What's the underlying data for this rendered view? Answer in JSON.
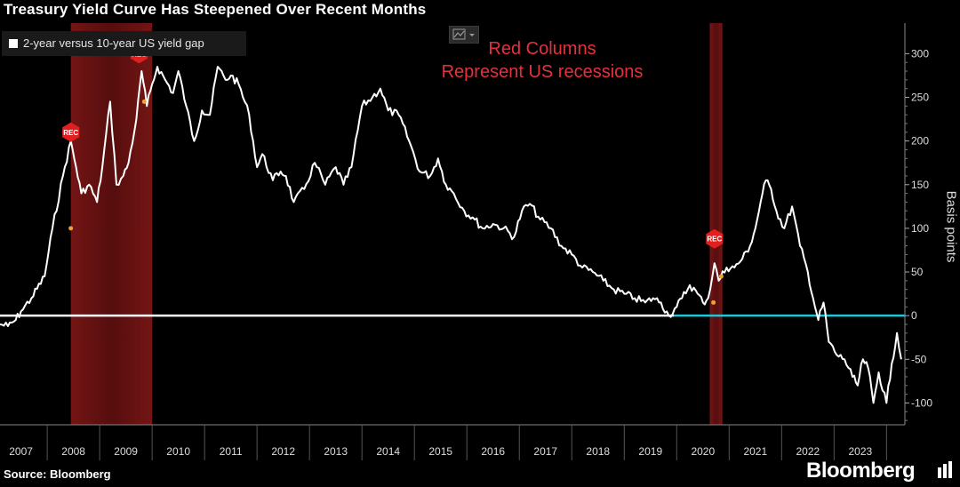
{
  "title": "Treasury Yield Curve Has Steepened Over Recent Months",
  "legend": {
    "label": "2-year versus 10-year US yield gap"
  },
  "annotation": {
    "line1": "Red Columns",
    "line2": "Represent US recessions"
  },
  "footer": {
    "source": "Source: Bloomberg",
    "brand": "Bloomberg"
  },
  "icons": {
    "chart_toggle": "line-chart-dropdown-icon",
    "brand_icon": "bloomberg-square-icon",
    "recession_marker": "rec-hexagon-icon"
  },
  "chart_data": {
    "type": "line",
    "title": "Treasury Yield Curve Has Steepened Over Recent Months",
    "ylabel": "Basis points",
    "ylim": [
      -125,
      335
    ],
    "y_ticks": [
      300,
      250,
      200,
      150,
      100,
      50,
      0,
      -50,
      -100
    ],
    "y_tick_labels": [
      "300",
      "250",
      "200",
      "150",
      "100",
      "50",
      "0",
      "-50",
      "-100"
    ],
    "x_ticks": [
      2007,
      2008,
      2009,
      2010,
      2011,
      2012,
      2013,
      2014,
      2015,
      2016,
      2017,
      2018,
      2019,
      2020,
      2021,
      2022,
      2023
    ],
    "xlim": [
      2006.6,
      2023.85
    ],
    "grid": false,
    "legend_position": "top-left",
    "recession_label": "REC",
    "recessions": [
      [
        2007.95,
        2009.5
      ],
      [
        2020.13,
        2020.37
      ]
    ],
    "series": [
      {
        "name": "2-year versus 10-year US yield gap",
        "color": "#ffffff",
        "negative_color": "#1ec8d8",
        "x": [
          2006.6,
          2006.75,
          2006.9,
          2007.0,
          2007.2,
          2007.45,
          2007.6,
          2007.8,
          2007.95,
          2008.05,
          2008.15,
          2008.3,
          2008.45,
          2008.55,
          2008.7,
          2008.82,
          2008.95,
          2009.05,
          2009.2,
          2009.3,
          2009.4,
          2009.5,
          2009.6,
          2009.75,
          2009.9,
          2010.0,
          2010.15,
          2010.3,
          2010.45,
          2010.6,
          2010.75,
          2010.9,
          2011.0,
          2011.15,
          2011.35,
          2011.5,
          2011.6,
          2011.8,
          2011.95,
          2012.05,
          2012.2,
          2012.4,
          2012.6,
          2012.8,
          2013.0,
          2013.15,
          2013.3,
          2013.5,
          2013.7,
          2013.85,
          2014.0,
          2014.2,
          2014.4,
          2014.6,
          2014.8,
          2014.95,
          2015.1,
          2015.25,
          2015.45,
          2015.65,
          2015.8,
          2016.0,
          2016.2,
          2016.4,
          2016.55,
          2016.7,
          2016.9,
          2017.1,
          2017.3,
          2017.5,
          2017.7,
          2017.9,
          2018.1,
          2018.3,
          2018.5,
          2018.7,
          2018.9,
          2019.05,
          2019.2,
          2019.35,
          2019.5,
          2019.6,
          2019.75,
          2019.9,
          2020.0,
          2020.1,
          2020.22,
          2020.3,
          2020.45,
          2020.6,
          2020.75,
          2020.9,
          2021.0,
          2021.1,
          2021.2,
          2021.3,
          2021.4,
          2021.55,
          2021.7,
          2021.85,
          2022.0,
          2022.1,
          2022.2,
          2022.3,
          2022.4,
          2022.55,
          2022.7,
          2022.85,
          2022.95,
          2023.05,
          2023.15,
          2023.25,
          2023.35,
          2023.5,
          2023.6,
          2023.7,
          2023.78
        ],
        "y": [
          -10,
          -12,
          -5,
          5,
          20,
          45,
          100,
          160,
          200,
          170,
          140,
          150,
          130,
          170,
          245,
          150,
          160,
          175,
          225,
          280,
          240,
          265,
          285,
          270,
          255,
          280,
          240,
          200,
          235,
          230,
          285,
          270,
          275,
          265,
          230,
          170,
          185,
          155,
          165,
          160,
          130,
          145,
          175,
          150,
          170,
          150,
          170,
          240,
          250,
          260,
          235,
          230,
          200,
          165,
          160,
          180,
          150,
          140,
          120,
          110,
          100,
          105,
          100,
          90,
          120,
          128,
          110,
          100,
          80,
          70,
          55,
          50,
          40,
          30,
          25,
          20,
          15,
          20,
          15,
          0,
          10,
          20,
          35,
          25,
          15,
          20,
          60,
          40,
          55,
          55,
          65,
          80,
          100,
          130,
          155,
          145,
          120,
          100,
          125,
          80,
          50,
          20,
          -5,
          15,
          -30,
          -45,
          -50,
          -70,
          -80,
          -50,
          -60,
          -100,
          -65,
          -100,
          -55,
          -20,
          -50
        ]
      }
    ]
  }
}
